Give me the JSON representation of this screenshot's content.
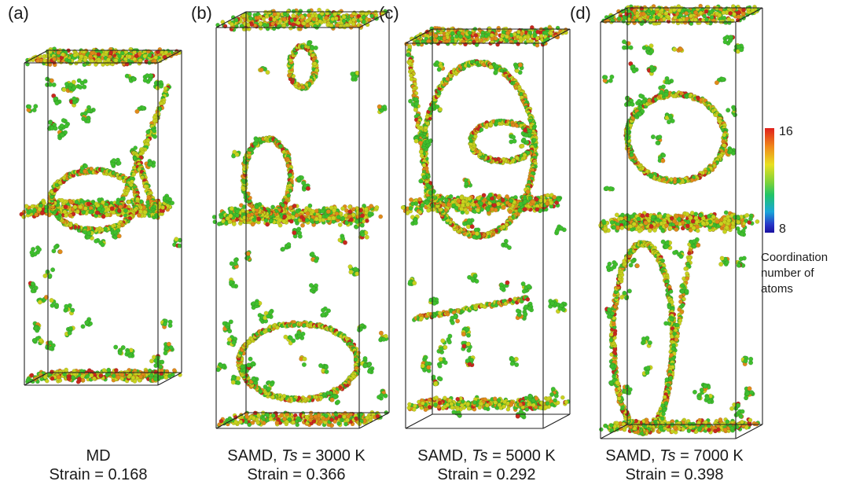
{
  "panels": [
    {
      "letter": "(a)",
      "caption_line1": "MD",
      "ts_prefix": "",
      "ts_symbol": "",
      "ts_value": "",
      "strain": "Strain = 0.168"
    },
    {
      "letter": "(b)",
      "caption_line1": "",
      "ts_prefix": "SAMD, ",
      "ts_symbol": "Ts",
      "ts_value": " = 3000 K",
      "strain": "Strain = 0.366"
    },
    {
      "letter": "(c)",
      "caption_line1": "",
      "ts_prefix": "SAMD, ",
      "ts_symbol": "Ts",
      "ts_value": " = 5000 K",
      "strain": "Strain = 0.292"
    },
    {
      "letter": "(d)",
      "caption_line1": "",
      "ts_prefix": "SAMD, ",
      "ts_symbol": "Ts",
      "ts_value": " = 7000 K",
      "strain": "Strain = 0.398"
    }
  ],
  "colorbar": {
    "max_label": "16",
    "min_label": "8",
    "title_lines": [
      "Coordination",
      "number of",
      "atoms"
    ]
  },
  "colors": {
    "atom_green": "#3fbf2e",
    "atom_yellow": "#c8d21e",
    "atom_orange": "#e08a1a",
    "atom_red": "#c8281e",
    "box_edge": "#222222"
  }
}
